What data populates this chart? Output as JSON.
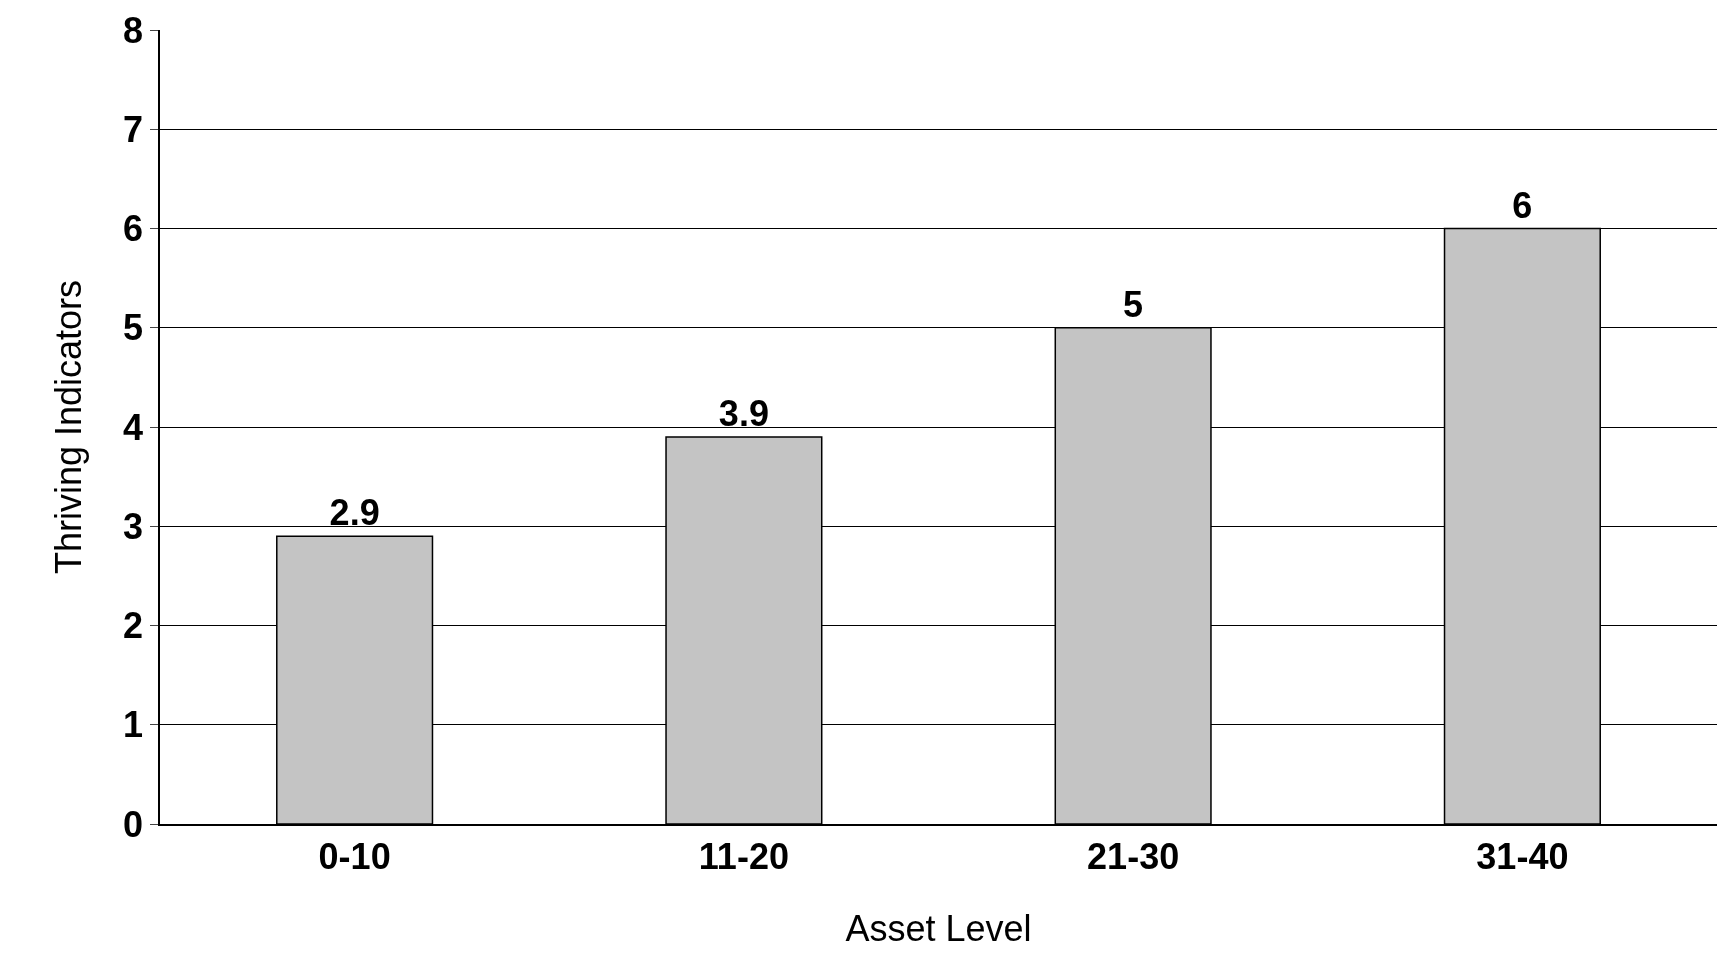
{
  "chart_data": {
    "type": "bar",
    "xlabel": "Asset Level",
    "ylabel": "Thriving Indicators",
    "categories": [
      "0-10",
      "11-20",
      "21-30",
      "31-40"
    ],
    "values": [
      2.9,
      3.9,
      5,
      6
    ],
    "color": "#c4c4c4",
    "ylim": [
      0,
      8
    ],
    "yticks": [
      0,
      1,
      2,
      3,
      4,
      5,
      6,
      7,
      8
    ],
    "grid": "y",
    "data_labels": true,
    "legend": false
  }
}
